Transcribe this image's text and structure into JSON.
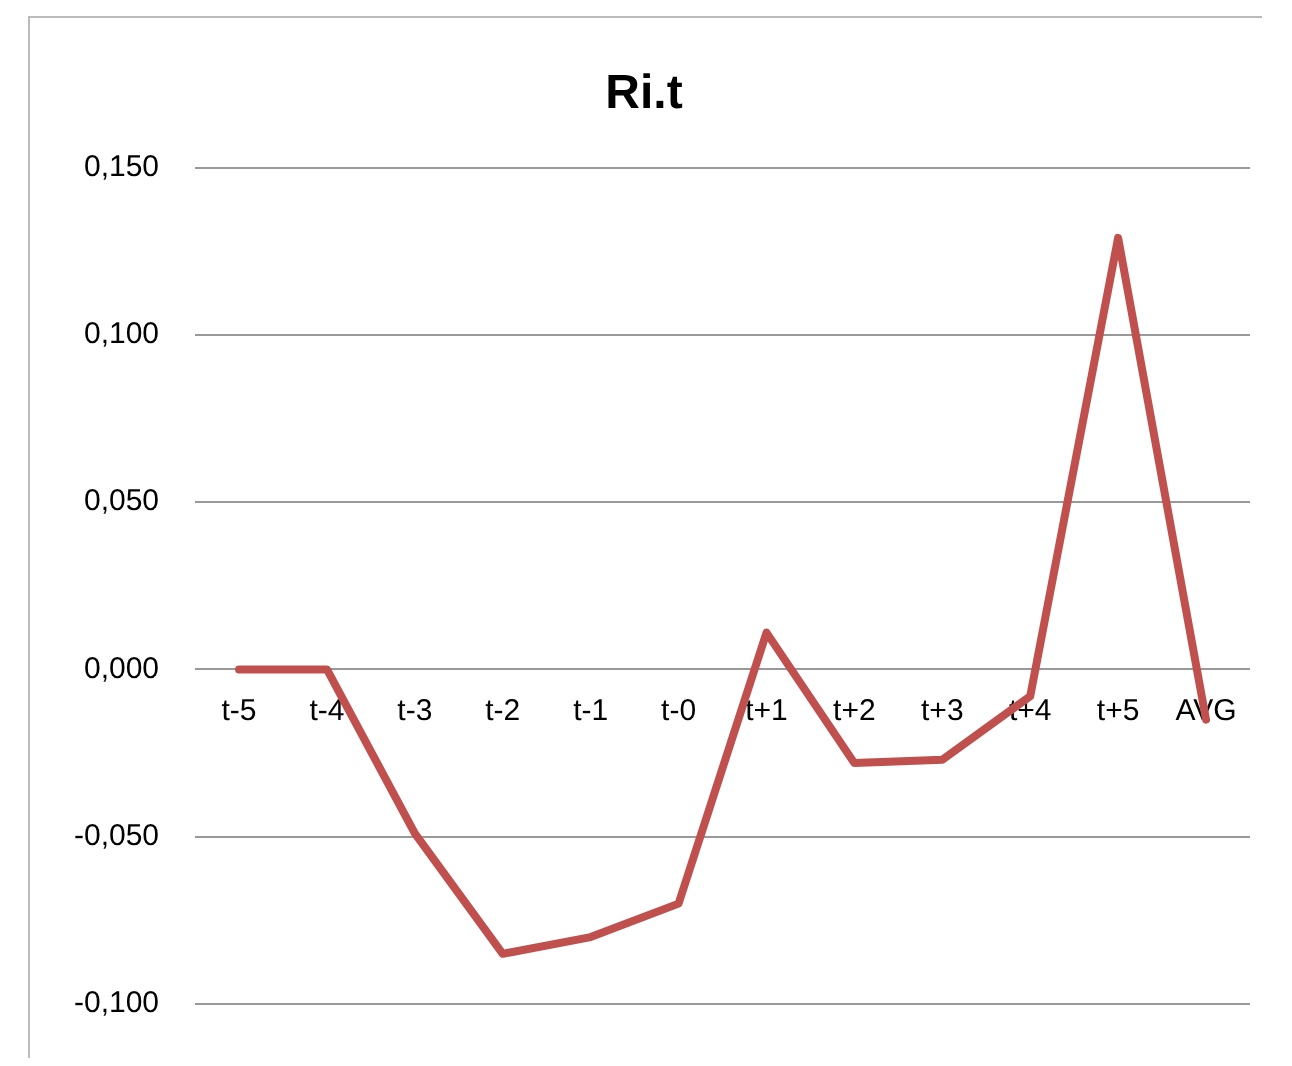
{
  "chart_data": {
    "type": "line",
    "title": "Ri.t",
    "categories": [
      "t-5",
      "t-4",
      "t-3",
      "t-2",
      "t-1",
      "t-0",
      "t+1",
      "t+2",
      "t+3",
      "t+4",
      "t+5",
      "AVG"
    ],
    "series": [
      {
        "color": "#c0504d",
        "values": [
          0,
          0,
          -0.049,
          -0.085,
          -0.08,
          -0.07,
          0.011,
          -0.028,
          -0.027,
          -0.008,
          0.129,
          -0.015
        ]
      }
    ],
    "ylim": [
      -0.1,
      0.15
    ],
    "yticks": [
      {
        "value": -0.1,
        "label": "-0,100"
      },
      {
        "value": -0.05,
        "label": "-0,050"
      },
      {
        "value": 0,
        "label": "0,000"
      },
      {
        "value": 0.05,
        "label": "0,050"
      },
      {
        "value": 0.1,
        "label": "0,100"
      },
      {
        "value": 0.15,
        "label": "0,150"
      }
    ],
    "grid": "y",
    "legend": false,
    "marker": "none",
    "line_style": "solid"
  }
}
